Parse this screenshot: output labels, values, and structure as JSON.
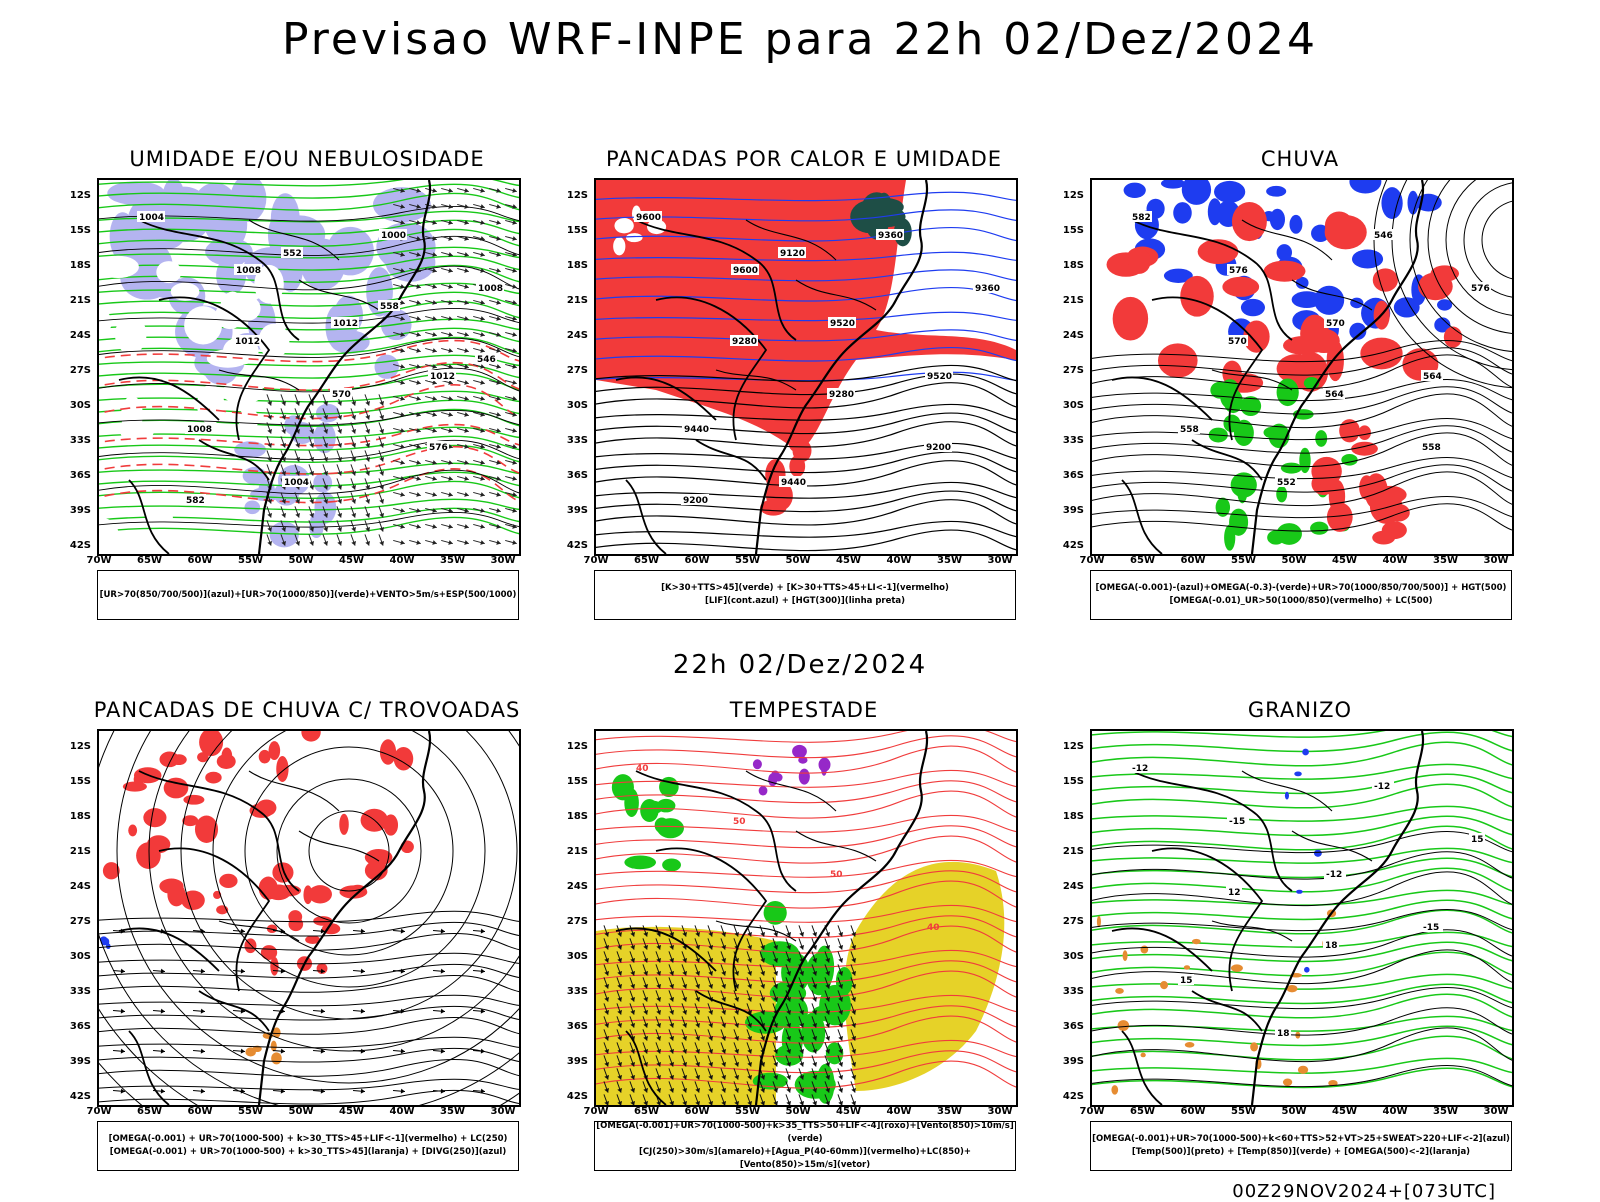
{
  "header": {
    "title": "Previsao WRF-INPE  para 22h 02/Dez/2024",
    "subtitle": "22h 02/Dez/2024",
    "footer": "00Z29NOV2024+[073UTC]"
  },
  "axes": {
    "lat_labels": [
      "12S",
      "15S",
      "18S",
      "21S",
      "24S",
      "27S",
      "30S",
      "33S",
      "36S",
      "39S",
      "42S"
    ],
    "lon_labels": [
      "70W",
      "65W",
      "60W",
      "55W",
      "50W",
      "45W",
      "40W",
      "35W",
      "30W"
    ]
  },
  "colors": {
    "red": "#f23a3a",
    "green": "#18c818",
    "blue": "#1e3cf0",
    "lavender": "#b4b4f0",
    "yellow": "#e6d228",
    "orange": "#e68c32",
    "purple": "#9628c8",
    "darkteal": "#1e4e46",
    "dashed_red": "#f03c3c"
  },
  "panels": [
    {
      "title": "UMIDADE E/OU NEBULOSIDADE",
      "legend": [
        "[UR>70(850/700/500)](azul)+[UR>70(1000/850)](verde)+VENTO>5m/s+ESP(500/1000)"
      ],
      "contour_labels": [
        "1004",
        "1008",
        "1012",
        "1012",
        "1008",
        "1004",
        "1000",
        "1008",
        "1012",
        "570",
        "576",
        "582",
        "552",
        "558",
        "546"
      ]
    },
    {
      "title": "PANCADAS POR CALOR E UMIDADE",
      "legend": [
        "[K>30+TTS>45](verde) + [K>30+TTS>45+LI<-1](vermelho)",
        "[LIF](cont.azul) + [HGT(300)](linha preta)"
      ],
      "contour_labels": [
        "9600",
        "9600",
        "9520",
        "9520",
        "9440",
        "9440",
        "9360",
        "9360",
        "9280",
        "9280",
        "9200",
        "9200",
        "9120"
      ]
    },
    {
      "title": "CHUVA",
      "legend": [
        "[OMEGA(-0.001)-(azul)+OMEGA(-0.3)-(verde)+UR>70(1000/850/700/500)] + HGT(500)",
        "[OMEGA(-0.01)_UR>50(1000/850)(vermelho) + LC(500)"
      ],
      "contour_labels": [
        "582",
        "576",
        "570",
        "564",
        "558",
        "552",
        "546",
        "576",
        "570",
        "564",
        "558"
      ]
    },
    {
      "title": "PANCADAS DE CHUVA C/ TROVOADAS",
      "legend": [
        "[OMEGA(-0.001) + UR>70(1000-500) + k>30_TTS>45+LIF<-1](vermelho) + LC(250)",
        "[OMEGA(-0.001) + UR>70(1000-500) + k>30_TTS>45](laranja) + [DIVG(250)](azul)"
      ],
      "contour_labels": []
    },
    {
      "title": "TEMPESTADE",
      "legend": [
        "[OMEGA(-0.001)+UR>70(1000-500)+k>35_TTS>50+LIF<-4](roxo)+[Vento(850)>10m/s](verde)",
        "[CJ(250)>30m/s](amarelo)+[Agua_P(40-60mm)](vermelho)+LC(850)+[Vento(850)>15m/s](vetor)"
      ],
      "contour_labels": [
        "40",
        "50",
        "50",
        "40"
      ]
    },
    {
      "title": "GRANIZO",
      "legend": [
        "[OMEGA(-0.001)+UR>70(1000-500)+k<60+TTS>52+VT>25+SWEAT>220+LIF<-2](azul)",
        "[Temp(500)](preto) + [Temp(850)](verde) + [OMEGA(500)<-2](laranja)"
      ],
      "contour_labels": [
        "-12",
        "-15",
        "-12",
        "-15",
        "15",
        "18",
        "-12",
        "15",
        "12",
        "18"
      ]
    }
  ]
}
